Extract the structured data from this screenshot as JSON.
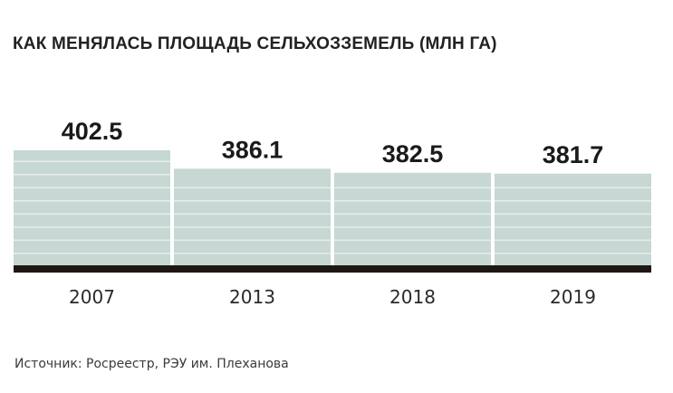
{
  "title": "КАК МЕНЯЛАСЬ ПЛОЩАДЬ СЕЛЬХОЗЗЕМЕЛЬ (МЛН ГА)",
  "source": "Источник: Росреестр, РЭУ им. Плеханова",
  "chart_data": {
    "type": "bar",
    "title": "КАК МЕНЯЛАСЬ ПЛОЩАДЬ СЕЛЬХОЗЗЕМЕЛЬ (МЛН ГА)",
    "categories": [
      "2007",
      "2013",
      "2018",
      "2019"
    ],
    "values": [
      402.5,
      386.1,
      382.5,
      381.7
    ],
    "value_labels": [
      "402.5",
      "386.1",
      "382.5",
      "381.7"
    ],
    "xlabel": "",
    "ylabel": "",
    "ylim": [
      300,
      402.5
    ],
    "grid": false,
    "legend": "none",
    "colors": {
      "bar_fill": "#c7d7d3",
      "bar_stripe": "#e4ece9",
      "baseline": "#1e1714",
      "text": "#1a1a1a"
    }
  }
}
